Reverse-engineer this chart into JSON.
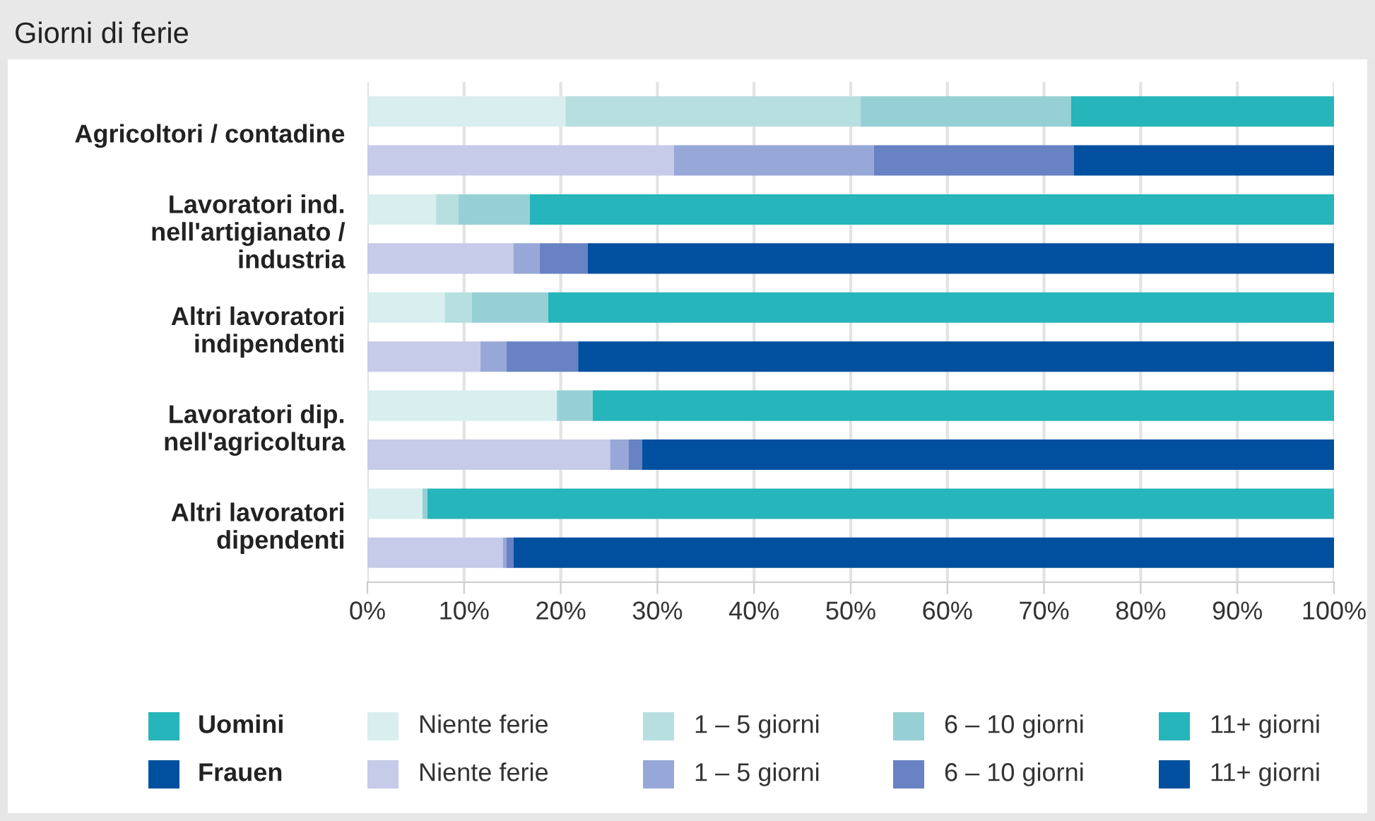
{
  "chart_data": {
    "type": "bar",
    "orientation": "horizontal",
    "stacked": true,
    "title": "Giorni di ferie",
    "categories": [
      "Agricoltori / contadine",
      null,
      "Lavoratori ind.\nnell'artigianato /\nindustria",
      null,
      "Altri lavoratori\nindipendenti",
      null,
      "Lavoratori dip.\nnell'agricoltura",
      null,
      "Altri lavoratori\ndipendenti",
      null
    ],
    "series": [
      {
        "name": "Niente ferie",
        "color": "#d9eeee",
        "values": [
          20.5,
          null,
          7.1,
          null,
          8.0,
          null,
          19.6,
          null,
          5.7,
          null
        ]
      },
      {
        "name": "1 – 5 giorni",
        "color": "#b7dfe0",
        "values": [
          30.5,
          null,
          2.3,
          null,
          2.8,
          null,
          0,
          null,
          null,
          null
        ]
      },
      {
        "name": "6 – 10 giorni",
        "color": "#96d0d4",
        "values": [
          21.8,
          null,
          7.4,
          null,
          7.9,
          null,
          3.7,
          null,
          0.5,
          null
        ]
      },
      {
        "name": "11+ giorni",
        "color": "#26b5ba",
        "values": [
          27.2,
          null,
          83.2,
          null,
          81.3,
          null,
          76.7,
          null,
          93.8,
          null
        ]
      },
      {
        "name": "Niente ferie",
        "color": "#c6cbe9",
        "values": [
          null,
          31.7,
          null,
          15.1,
          null,
          11.7,
          null,
          25.1,
          null,
          14.0
        ]
      },
      {
        "name": "1 – 5 giorni",
        "color": "#97a8d8",
        "values": [
          null,
          20.7,
          null,
          2.7,
          null,
          2.7,
          null,
          1.9,
          null,
          0.4
        ]
      },
      {
        "name": "6 – 10 giorni",
        "color": "#6882c3",
        "values": [
          null,
          20.7,
          null,
          5.0,
          null,
          7.4,
          null,
          1.4,
          null,
          0.7
        ]
      },
      {
        "name": "11+ giorni",
        "color": "#00509f",
        "values": [
          null,
          26.9,
          null,
          77.2,
          null,
          78.2,
          null,
          71.6,
          null,
          84.9
        ]
      }
    ],
    "annotations": [
      "Uomini",
      "Frauen"
    ],
    "xlim": [
      0,
      100
    ],
    "xticks": [
      {
        "value": 0,
        "label": "0%"
      },
      {
        "value": 10,
        "label": "10%"
      },
      {
        "value": 20,
        "label": "20%"
      },
      {
        "value": 30,
        "label": "30%"
      },
      {
        "value": 40,
        "label": "40%"
      },
      {
        "value": 50,
        "label": "50%"
      },
      {
        "value": 60,
        "label": "60%"
      },
      {
        "value": 70,
        "label": "70%"
      },
      {
        "value": 80,
        "label": "80%"
      },
      {
        "value": 90,
        "label": "90%"
      },
      {
        "value": 100,
        "label": "100%"
      }
    ],
    "grid": "x",
    "legend": "bottom"
  }
}
